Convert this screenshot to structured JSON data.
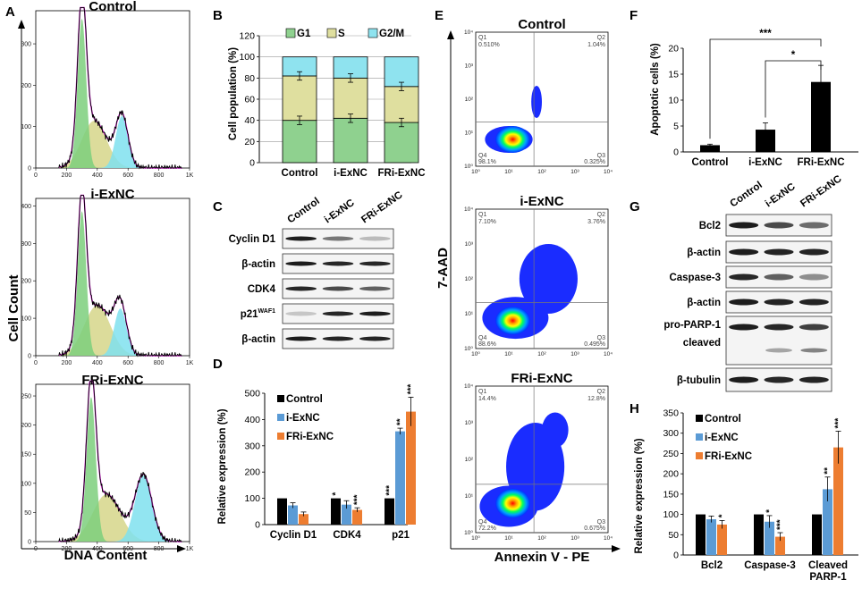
{
  "panel_letters": [
    "A",
    "B",
    "C",
    "D",
    "E",
    "F",
    "G",
    "H"
  ],
  "panel_a": {
    "y_label": "Cell Count",
    "x_label": "DNA Content",
    "histograms": [
      {
        "title": "Control",
        "yticks": [
          "0",
          "100",
          "200",
          "300"
        ],
        "ymax": 380
      },
      {
        "title": "i-ExNC",
        "yticks": [
          "0",
          "100",
          "200",
          "300",
          "400"
        ],
        "ymax": 420
      },
      {
        "title": "FRi-ExNC",
        "yticks": [
          "0",
          "50",
          "100",
          "150",
          "200",
          "250"
        ],
        "ymax": 270
      }
    ],
    "xticks": [
      "0",
      "200",
      "400",
      "600",
      "800",
      "1K"
    ]
  },
  "chart_data": [
    {
      "id": "B",
      "type": "bar",
      "stacked": true,
      "title": "",
      "ylabel": "Cell population (%)",
      "ylim": [
        0,
        120
      ],
      "yticks": [
        0,
        20,
        40,
        60,
        80,
        100,
        120
      ],
      "categories": [
        "Control",
        "i-ExNC",
        "FRi-ExNC"
      ],
      "legend": [
        "G1",
        "S",
        "G2/M"
      ],
      "colors": [
        "#8fd18f",
        "#dfdf9f",
        "#8fe3ef"
      ],
      "series": [
        {
          "name": "G1",
          "values": [
            40,
            42,
            38
          ]
        },
        {
          "name": "S",
          "values": [
            42,
            38,
            34
          ]
        },
        {
          "name": "G2/M",
          "values": [
            18,
            20,
            28
          ]
        }
      ]
    },
    {
      "id": "D",
      "type": "bar",
      "ylabel": "Relative expression (%)",
      "ylim": [
        0,
        500
      ],
      "yticks": [
        0,
        100,
        200,
        300,
        400,
        500
      ],
      "categories": [
        "Cyclin D1",
        "CDK4",
        "p21"
      ],
      "legend": [
        "Control",
        "i-ExNC",
        "FRi-ExNC"
      ],
      "colors": [
        "#000000",
        "#5b9bd5",
        "#ed7d31"
      ],
      "series": [
        {
          "name": "Control",
          "values": [
            100,
            100,
            100
          ],
          "errors": [
            0,
            0,
            0
          ]
        },
        {
          "name": "i-ExNC",
          "values": [
            73,
            76,
            355
          ],
          "errors": [
            10,
            15,
            12
          ]
        },
        {
          "name": "FRi-ExNC",
          "values": [
            40,
            56,
            430
          ],
          "errors": [
            8,
            8,
            55
          ]
        }
      ],
      "annotations": [
        [
          "",
          "*",
          "***"
        ],
        [
          "",
          "",
          "**"
        ],
        [
          "",
          "***",
          "***"
        ]
      ]
    },
    {
      "id": "F",
      "type": "bar",
      "ylabel": "Apoptotic cells (%)",
      "ylim": [
        0,
        20
      ],
      "yticks": [
        0,
        5,
        10,
        15,
        20
      ],
      "categories": [
        "Control",
        "i-ExNC",
        "FRi-ExNC"
      ],
      "values": [
        1.3,
        4.3,
        13.5
      ],
      "errors": [
        0.2,
        1.3,
        3.2
      ],
      "color": "#000000",
      "significance": [
        {
          "from": "Control",
          "to": "FRi-ExNC",
          "label": "***"
        },
        {
          "from": "i-ExNC",
          "to": "FRi-ExNC",
          "label": "*"
        }
      ]
    },
    {
      "id": "H",
      "type": "bar",
      "ylabel": "Relative expression (%)",
      "ylim": [
        0,
        350
      ],
      "yticks": [
        0,
        50,
        100,
        150,
        200,
        250,
        300,
        350
      ],
      "categories": [
        "Bcl2",
        "Caspase-3",
        "Cleaved PARP-1"
      ],
      "category_lines": [
        [
          "Bcl2"
        ],
        [
          "Caspase-3"
        ],
        [
          "Cleaved",
          "PARP-1"
        ]
      ],
      "legend": [
        "Control",
        "i-ExNC",
        "FRi-ExNC"
      ],
      "colors": [
        "#000000",
        "#5b9bd5",
        "#ed7d31"
      ],
      "series": [
        {
          "name": "Control",
          "values": [
            100,
            100,
            100
          ],
          "errors": [
            0,
            0,
            0
          ]
        },
        {
          "name": "i-ExNC",
          "values": [
            88,
            82,
            162
          ],
          "errors": [
            8,
            15,
            30
          ]
        },
        {
          "name": "FRi-ExNC",
          "values": [
            75,
            45,
            265
          ],
          "errors": [
            10,
            10,
            40
          ]
        }
      ],
      "annotations": [
        [
          "",
          "",
          ""
        ],
        [
          "",
          "*",
          "**"
        ],
        [
          "*",
          "***",
          "***"
        ]
      ]
    }
  ],
  "panel_c": {
    "columns": [
      "Control",
      "i-ExNC",
      "FRi-ExNC"
    ],
    "rows": [
      {
        "label": "Cyclin D1",
        "sup": ""
      },
      {
        "label": "β-actin",
        "sup": ""
      },
      {
        "label": "CDK4",
        "sup": ""
      },
      {
        "label": "p21",
        "sup": "WAF1"
      },
      {
        "label": "β-actin",
        "sup": ""
      }
    ]
  },
  "panel_e": {
    "y_label": "7-AAD",
    "x_label": "Annexin V - PE",
    "axis_ticks": [
      "10⁰",
      "10¹",
      "10²",
      "10³",
      "10⁴"
    ],
    "plots": [
      {
        "title": "Control",
        "q1": "Q1",
        "q1_val": "0.510%",
        "q2": "Q2",
        "q2_val": "1.04%",
        "q3": "Q3",
        "q3_val": "0.325%",
        "q4": "Q4",
        "q4_val": "98.1%"
      },
      {
        "title": "i-ExNC",
        "q1": "Q1",
        "q1_val": "7.10%",
        "q2": "Q2",
        "q2_val": "3.76%",
        "q3": "Q3",
        "q3_val": "0.495%",
        "q4": "Q4",
        "q4_val": "88.6%"
      },
      {
        "title": "FRi-ExNC",
        "q1": "Q1",
        "q1_val": "14.4%",
        "q2": "Q2",
        "q2_val": "12.8%",
        "q3": "Q3",
        "q3_val": "0.675%",
        "q4": "Q4",
        "q4_val": "72.2%"
      }
    ]
  },
  "panel_g": {
    "columns": [
      "Control",
      "i-ExNC",
      "FRi-ExNC"
    ],
    "rows": [
      {
        "label": "Bcl2"
      },
      {
        "label": "β-actin"
      },
      {
        "label": "Caspase-3"
      },
      {
        "label": "β-actin"
      },
      {
        "label": "pro-PARP-1"
      },
      {
        "label": "cleaved"
      },
      {
        "label": "β-tubulin"
      }
    ]
  }
}
